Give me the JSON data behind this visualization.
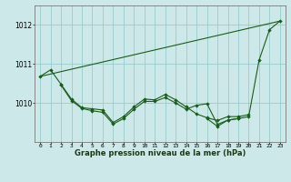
{
  "title": "Graphe pression niveau de la mer (hPa)",
  "bg_color": "#cce8e8",
  "grid_color": "#99cccc",
  "line_color": "#1a5c1a",
  "xlim": [
    -0.5,
    23.5
  ],
  "ylim": [
    1009.0,
    1012.5
  ],
  "yticks": [
    1010,
    1011,
    1012
  ],
  "xticks": [
    0,
    1,
    2,
    3,
    4,
    5,
    6,
    7,
    8,
    9,
    10,
    11,
    12,
    13,
    14,
    15,
    16,
    17,
    18,
    19,
    20,
    21,
    22,
    23
  ],
  "line1_x": [
    0,
    23
  ],
  "line1_y": [
    1010.68,
    1012.1
  ],
  "line2_x": [
    0,
    1,
    2,
    3,
    4,
    5,
    6,
    7,
    8,
    9,
    10,
    11,
    12,
    13,
    14,
    15,
    16,
    17,
    18,
    19,
    20
  ],
  "line2_y": [
    1010.68,
    1010.85,
    1010.48,
    1010.1,
    1009.88,
    1009.85,
    1009.82,
    1009.5,
    1009.65,
    1009.9,
    1010.1,
    1010.08,
    1010.22,
    1010.08,
    1009.9,
    1009.72,
    1009.62,
    1009.55,
    1009.65,
    1009.65,
    1009.7
  ],
  "line3_x": [
    2,
    3,
    4,
    5,
    6,
    7,
    8,
    9,
    10,
    11,
    12,
    13,
    14,
    15,
    16,
    17,
    18,
    19
  ],
  "line3_y": [
    1010.46,
    1010.06,
    1009.86,
    1009.8,
    1009.76,
    1009.46,
    1009.6,
    1009.84,
    1010.04,
    1010.04,
    1010.14,
    1010.0,
    1009.84,
    1009.94,
    1009.98,
    1009.45,
    1009.56,
    1009.6
  ],
  "line4_x": [
    16,
    17,
    18,
    19,
    20,
    21,
    22,
    23
  ],
  "line4_y": [
    1009.6,
    1009.4,
    1009.56,
    1009.6,
    1009.65,
    1011.1,
    1011.88,
    1012.1
  ]
}
